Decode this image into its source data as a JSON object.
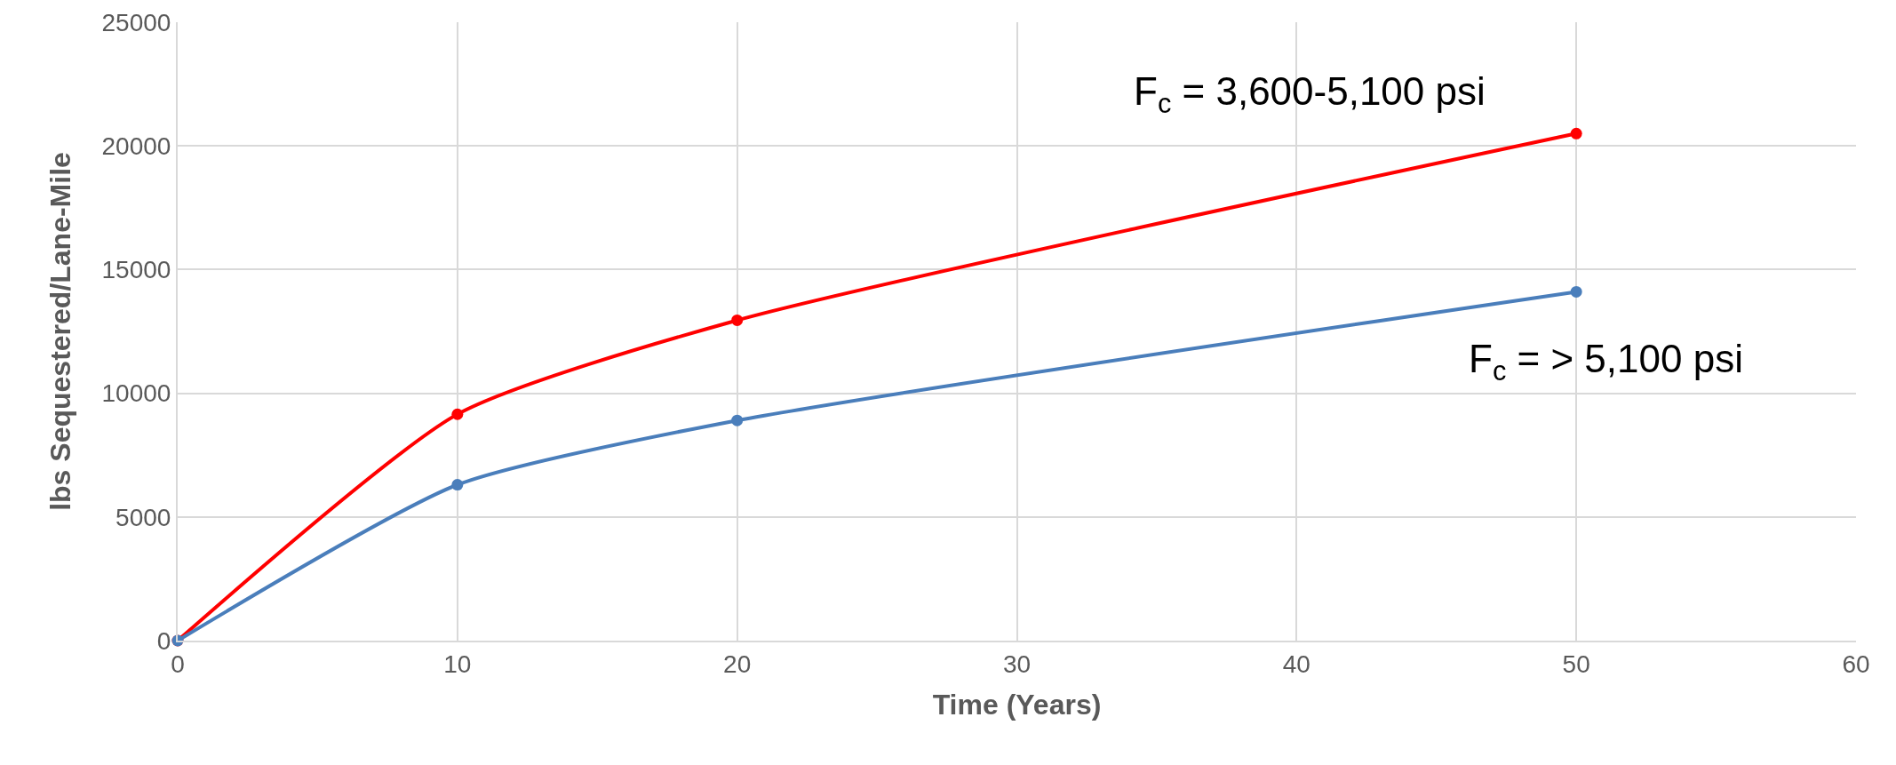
{
  "chart_data": {
    "type": "line",
    "xlabel": "Time (Years)",
    "ylabel": "lbs Sequestered/Lane-Mile",
    "x": [
      0,
      10,
      20,
      50
    ],
    "series": [
      {
        "name": "F$_{c}$ = 3,600-5,100 psi",
        "color": "#ff0000",
        "values": [
          0,
          9150,
          12950,
          20500
        ]
      },
      {
        "name": "F$_{c}$ = > 5,100 psi",
        "color": "#4a7ebb",
        "values": [
          0,
          6300,
          8900,
          14100
        ]
      }
    ],
    "xlim": [
      0,
      60
    ],
    "xticks": [
      0,
      10,
      20,
      30,
      40,
      50,
      60
    ],
    "ylim": [
      0,
      25000
    ],
    "yticks": [
      0,
      5000,
      10000,
      15000,
      20000,
      25000
    ],
    "grid": true,
    "legend": false,
    "marker": "circle",
    "line_style": "solid"
  }
}
